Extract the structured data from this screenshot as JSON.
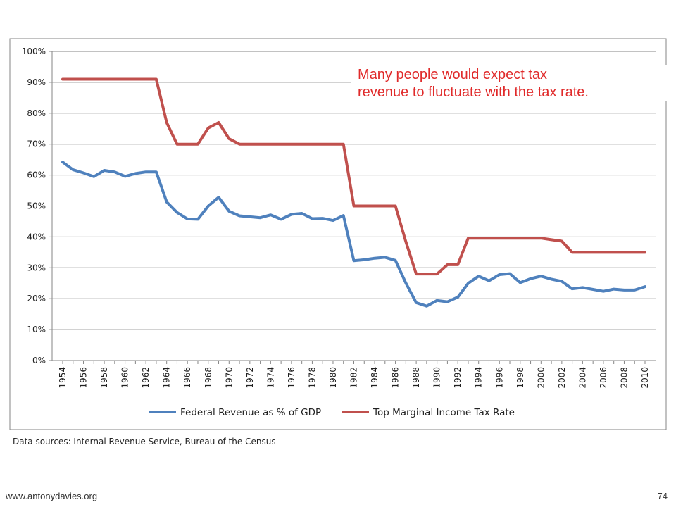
{
  "slide": {
    "annotation_lines": [
      "Many people would expect tax",
      "revenue to fluctuate with the tax rate."
    ],
    "source": "Data sources: Internal Revenue Service, Bureau of the Census",
    "website": "www.antonydavies.org",
    "page_number": "74"
  },
  "chart_data": {
    "type": "line",
    "ylim": [
      0,
      100
    ],
    "yticks": [
      0,
      10,
      20,
      30,
      40,
      50,
      60,
      70,
      80,
      90,
      100
    ],
    "ytick_labels": [
      "0%",
      "10%",
      "20%",
      "30%",
      "40%",
      "50%",
      "60%",
      "70%",
      "80%",
      "90%",
      "100%"
    ],
    "xticks": [
      1954,
      1956,
      1958,
      1960,
      1962,
      1964,
      1966,
      1968,
      1970,
      1972,
      1974,
      1976,
      1978,
      1980,
      1982,
      1984,
      1986,
      1988,
      1990,
      1992,
      1994,
      1996,
      1998,
      2000,
      2002,
      2004,
      2006,
      2008,
      2010
    ],
    "xtick_labels": [
      "1954",
      "1956",
      "1958",
      "1960",
      "1962",
      "1964",
      "1966",
      "1968",
      "1970",
      "1972",
      "1974",
      "1976",
      "1978",
      "1980",
      "1982",
      "1984",
      "1986",
      "1988",
      "1990",
      "1992",
      "1994",
      "1996",
      "1998",
      "2000",
      "2002",
      "2004",
      "2006",
      "2008",
      "2010"
    ],
    "grid": "horizontal",
    "legend_position": "bottom",
    "x": [
      1954,
      1955,
      1956,
      1957,
      1958,
      1959,
      1960,
      1961,
      1962,
      1963,
      1964,
      1965,
      1966,
      1967,
      1968,
      1969,
      1970,
      1971,
      1972,
      1973,
      1974,
      1975,
      1976,
      1977,
      1978,
      1979,
      1980,
      1981,
      1982,
      1983,
      1984,
      1985,
      1986,
      1987,
      1988,
      1989,
      1990,
      1991,
      1992,
      1993,
      1994,
      1995,
      1996,
      1997,
      1998,
      1999,
      2000,
      2001,
      2002,
      2003,
      2004,
      2005,
      2006,
      2007,
      2008,
      2009,
      2010
    ],
    "series": [
      {
        "name": "Federal Revenue as % of GDP",
        "color": "#4f81bd",
        "values": [
          64.2,
          61.7,
          60.7,
          59.5,
          61.5,
          61.0,
          59.6,
          60.5,
          61.0,
          61.0,
          51.3,
          47.9,
          45.8,
          45.7,
          50.0,
          52.8,
          48.3,
          46.8,
          46.5,
          46.2,
          47.1,
          45.7,
          47.3,
          47.6,
          45.9,
          46.0,
          45.3,
          46.9,
          32.3,
          32.6,
          33.1,
          33.4,
          32.4,
          25.1,
          18.7,
          17.6,
          19.4,
          19.0,
          20.5,
          25.0,
          27.3,
          25.8,
          27.8,
          28.1,
          25.2,
          26.5,
          27.3,
          26.3,
          25.6,
          23.2,
          23.6,
          23.0,
          22.4,
          23.1,
          22.8,
          22.8,
          23.9
        ]
      },
      {
        "name": "Top Marginal Income Tax Rate",
        "color": "#c0504d",
        "values": [
          91,
          91,
          91,
          91,
          91,
          91,
          91,
          91,
          91,
          91,
          77,
          70,
          70,
          70,
          75.25,
          77,
          71.75,
          70,
          70,
          70,
          70,
          70,
          70,
          70,
          70,
          70,
          70,
          70,
          50,
          50,
          50,
          50,
          50,
          38.5,
          28,
          28,
          28,
          31,
          31,
          39.6,
          39.6,
          39.6,
          39.6,
          39.6,
          39.6,
          39.6,
          39.6,
          39.1,
          38.6,
          35,
          35,
          35,
          35,
          35,
          35,
          35,
          35
        ]
      }
    ]
  }
}
